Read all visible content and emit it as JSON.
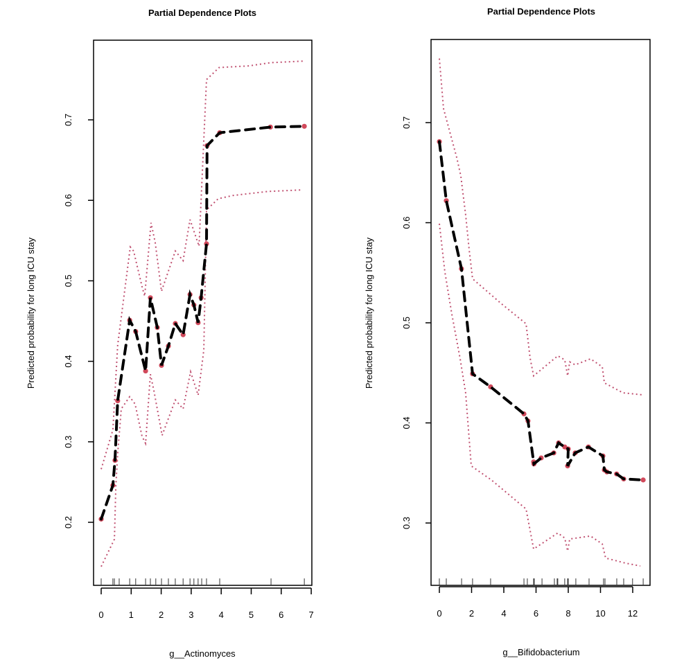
{
  "colors": {
    "pd_line": "#000000",
    "points": "#D1495B",
    "ci": "#C05070",
    "frame": "#000000"
  },
  "chart_data": [
    {
      "type": "line",
      "title": "Partial Dependence Plots",
      "xlabel": "g__Actinomyces",
      "ylabel": "Predicted probability for long ICU stay",
      "xticks": [
        0,
        1,
        2,
        3,
        4,
        5,
        6,
        7
      ],
      "yticks": [
        0.2,
        0.3,
        0.4,
        0.5,
        0.6,
        0.7
      ],
      "xlim": [
        -0.25,
        7.0
      ],
      "ylim": [
        0.115,
        0.79
      ],
      "grid": false,
      "pd": {
        "x": [
          0,
          0.39,
          0.46,
          0.55,
          0.95,
          1.15,
          1.48,
          1.64,
          1.87,
          2.01,
          2.24,
          2.47,
          2.73,
          2.96,
          3.09,
          3.23,
          3.33,
          3.51,
          3.53,
          3.95,
          5.64,
          6.77
        ],
        "y": [
          0.204,
          0.246,
          0.277,
          0.351,
          0.451,
          0.437,
          0.388,
          0.479,
          0.442,
          0.395,
          0.419,
          0.447,
          0.433,
          0.483,
          0.47,
          0.448,
          0.479,
          0.546,
          0.668,
          0.684,
          0.691,
          0.692
        ]
      },
      "ci_upper": {
        "x": [
          0,
          0.39,
          0.55,
          0.97,
          1.08,
          1.36,
          1.45,
          1.66,
          1.8,
          2.01,
          2.47,
          2.73,
          2.96,
          3.26,
          3.51,
          3.93,
          4.93,
          5.64,
          6.74
        ],
        "y": [
          0.266,
          0.315,
          0.42,
          0.542,
          0.537,
          0.493,
          0.481,
          0.572,
          0.548,
          0.487,
          0.537,
          0.525,
          0.576,
          0.543,
          0.75,
          0.765,
          0.767,
          0.771,
          0.773
        ]
      },
      "ci_lower": {
        "x": [
          0,
          0.44,
          0.49,
          0.55,
          0.67,
          0.95,
          1.13,
          1.36,
          1.48,
          1.64,
          1.76,
          2.03,
          2.47,
          2.73,
          2.98,
          3.23,
          3.42,
          3.51,
          3.9,
          4.39,
          5.55,
          6.72
        ],
        "y": [
          0.145,
          0.179,
          0.246,
          0.285,
          0.341,
          0.356,
          0.347,
          0.307,
          0.298,
          0.384,
          0.363,
          0.308,
          0.352,
          0.341,
          0.387,
          0.358,
          0.414,
          0.588,
          0.602,
          0.606,
          0.611,
          0.613
        ]
      },
      "rug": [
        0,
        0.39,
        0.44,
        0.6,
        0.95,
        1.15,
        1.48,
        1.64,
        1.82,
        2.01,
        2.24,
        2.47,
        2.73,
        2.96,
        3.09,
        3.23,
        3.35,
        3.51,
        3.95,
        5.66,
        6.77
      ]
    },
    {
      "type": "line",
      "title": "Partial Dependence Plots",
      "xlabel": "g__Bifidobacterium",
      "ylabel": "Predicted probability for long ICU stay",
      "xticks": [
        0,
        2,
        4,
        6,
        8,
        10,
        12
      ],
      "yticks": [
        0.3,
        0.4,
        0.5,
        0.6,
        0.7
      ],
      "xlim": [
        -0.5,
        13.0
      ],
      "ylim": [
        0.24,
        0.79
      ],
      "grid": false,
      "pd": {
        "x": [
          0,
          0.43,
          1.37,
          2.06,
          3.18,
          5.25,
          5.5,
          5.85,
          5.87,
          6.32,
          7.1,
          7.4,
          7.78,
          8.0,
          7.96,
          8.43,
          9.25,
          10.15,
          10.24,
          10.4,
          11.0,
          11.44,
          12.65
        ],
        "y": [
          0.681,
          0.622,
          0.554,
          0.449,
          0.436,
          0.409,
          0.402,
          0.361,
          0.359,
          0.365,
          0.37,
          0.38,
          0.376,
          0.374,
          0.357,
          0.37,
          0.376,
          0.367,
          0.353,
          0.351,
          0.349,
          0.344,
          0.343
        ]
      },
      "ci_upper": {
        "x": [
          0,
          0.26,
          0.56,
          1.08,
          1.33,
          1.63,
          1.85,
          2.06,
          3.78,
          5.38,
          5.63,
          5.85,
          7.35,
          7.78,
          7.96,
          8.09,
          8.43,
          9.38,
          10.11,
          10.24,
          11.4,
          12.6
        ],
        "y": [
          0.764,
          0.714,
          0.696,
          0.665,
          0.647,
          0.608,
          0.573,
          0.544,
          0.52,
          0.499,
          0.465,
          0.447,
          0.467,
          0.463,
          0.447,
          0.461,
          0.458,
          0.464,
          0.456,
          0.44,
          0.43,
          0.428
        ]
      },
      "ci_lower": {
        "x": [
          0,
          0.34,
          0.77,
          1.29,
          1.63,
          1.98,
          3.23,
          5.38,
          5.85,
          7.35,
          7.78,
          7.96,
          8.09,
          9.38,
          10.11,
          10.32,
          11.53,
          12.47
        ],
        "y": [
          0.599,
          0.551,
          0.509,
          0.464,
          0.43,
          0.357,
          0.343,
          0.314,
          0.274,
          0.29,
          0.285,
          0.272,
          0.284,
          0.287,
          0.279,
          0.265,
          0.26,
          0.257
        ]
      },
      "rug": [
        0,
        0.43,
        1.38,
        2.06,
        3.18,
        5.25,
        5.46,
        5.85,
        5.89,
        6.37,
        7.14,
        7.31,
        7.35,
        7.78,
        7.96,
        8.0,
        8.47,
        9.29,
        10.19,
        10.28,
        11.01,
        11.44,
        11.99,
        12.65
      ]
    }
  ]
}
